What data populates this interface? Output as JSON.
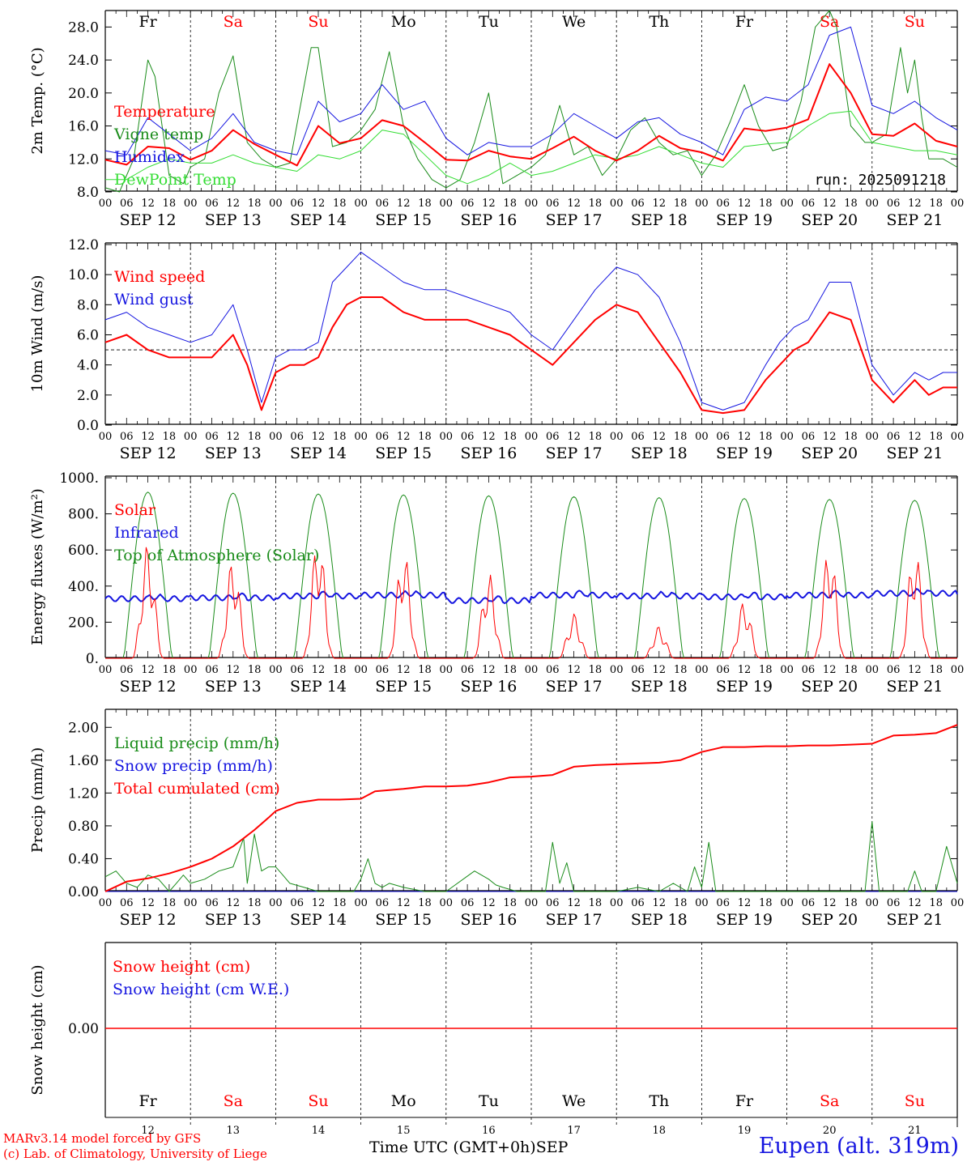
{
  "run_label": "run: 2025091218",
  "day_labels": [
    {
      "abbr": "Fr",
      "color": "#000000"
    },
    {
      "abbr": "Sa",
      "color": "#ff0000"
    },
    {
      "abbr": "Su",
      "color": "#ff0000"
    },
    {
      "abbr": "Mo",
      "color": "#000000"
    },
    {
      "abbr": "Tu",
      "color": "#000000"
    },
    {
      "abbr": "We",
      "color": "#000000"
    },
    {
      "abbr": "Th",
      "color": "#000000"
    },
    {
      "abbr": "Fr",
      "color": "#000000"
    },
    {
      "abbr": "Sa",
      "color": "#ff0000"
    },
    {
      "abbr": "Su",
      "color": "#ff0000"
    }
  ],
  "date_labels": [
    "SEP 12",
    "SEP 13",
    "SEP 14",
    "SEP 15",
    "SEP 16",
    "SEP 17",
    "SEP 18",
    "SEP 19",
    "SEP 20",
    "SEP 21"
  ],
  "hour_ticks": [
    "00",
    "06",
    "12",
    "18"
  ],
  "bottom_day_numbers": [
    "12",
    "13",
    "14",
    "15",
    "16",
    "17",
    "18",
    "19",
    "20",
    "21"
  ],
  "footer": {
    "model_line": "MARv3.14 model forced by GFS",
    "copyright_line": "(c) Lab. of Climatology, University of Liege",
    "axis_title": "Time UTC (GMT+0h)",
    "month": "SEP",
    "station": "Eupen (alt. 319m)"
  },
  "colors": {
    "red": "#ff0000",
    "green": "#1a8c1a",
    "blue": "#1515e0",
    "lightgreen": "#33dd33"
  },
  "chart_data": [
    {
      "type": "line",
      "ylabel": "2m Temp. (°C)",
      "ylim": [
        8,
        30
      ],
      "yticks": [
        "28.0",
        "24.0",
        "20.0",
        "16.0",
        "12.0",
        "8.0"
      ],
      "ytick_values": [
        28,
        24,
        20,
        16,
        12,
        8
      ],
      "x_unit": "hours since SEP 12 00 UTC",
      "xlim": [
        0,
        240
      ],
      "series": [
        {
          "name": "Temperature",
          "color": "#ff0000",
          "width": 2,
          "x": [
            0,
            6,
            12,
            18,
            24,
            30,
            36,
            42,
            48,
            54,
            60,
            66,
            72,
            78,
            84,
            90,
            96,
            102,
            108,
            114,
            120,
            126,
            132,
            138,
            144,
            150,
            156,
            162,
            168,
            174,
            180,
            186,
            192,
            198,
            204,
            210,
            216,
            222,
            228,
            234,
            240
          ],
          "y": [
            11.9,
            11.3,
            13.5,
            13.3,
            11.9,
            13.0,
            15.5,
            13.8,
            12.5,
            11.2,
            16.0,
            13.9,
            14.5,
            16.7,
            16.0,
            14.0,
            11.9,
            11.8,
            13.0,
            12.3,
            12.0,
            13.3,
            14.7,
            13.0,
            11.8,
            13.0,
            14.8,
            13.3,
            12.8,
            11.8,
            15.7,
            15.4,
            15.8,
            16.8,
            23.5,
            20.0,
            15.0,
            14.8,
            16.3,
            14.2,
            13.5
          ]
        },
        {
          "name": "Vigne temp",
          "color": "#1a8c1a",
          "width": 1,
          "x": [
            0,
            4,
            8,
            12,
            14,
            18,
            22,
            24,
            28,
            32,
            36,
            40,
            44,
            48,
            52,
            58,
            60,
            64,
            68,
            72,
            76,
            80,
            84,
            88,
            92,
            96,
            100,
            104,
            108,
            112,
            116,
            120,
            124,
            128,
            132,
            136,
            140,
            144,
            148,
            152,
            156,
            160,
            164,
            168,
            172,
            176,
            180,
            184,
            188,
            192,
            196,
            200,
            204,
            206,
            210,
            214,
            216,
            220,
            224,
            226,
            228,
            230,
            232,
            236,
            240
          ],
          "y": [
            8.5,
            8.0,
            12.0,
            24.0,
            22.0,
            10.0,
            9.0,
            11.0,
            12.0,
            20.0,
            24.5,
            14.0,
            12.0,
            11.0,
            11.5,
            25.5,
            25.5,
            13.5,
            14.0,
            15.5,
            18.0,
            25.0,
            16.0,
            12.0,
            9.5,
            8.5,
            9.5,
            14.0,
            20.0,
            9.0,
            10.0,
            11.0,
            12.5,
            18.5,
            12.5,
            13.5,
            10.0,
            12.0,
            15.5,
            17.0,
            14.0,
            12.5,
            13.0,
            10.0,
            12.5,
            16.5,
            21.0,
            16.0,
            13.0,
            13.5,
            19.0,
            28.0,
            30.0,
            28.0,
            16.0,
            14.0,
            14.0,
            15.0,
            25.5,
            20.0,
            24.0,
            17.0,
            12.0,
            12.0,
            11.0
          ]
        },
        {
          "name": "Humidex",
          "color": "#1515e0",
          "width": 1,
          "x": [
            0,
            6,
            12,
            18,
            24,
            30,
            36,
            42,
            48,
            54,
            60,
            66,
            72,
            78,
            84,
            90,
            96,
            102,
            108,
            114,
            120,
            126,
            132,
            138,
            144,
            150,
            156,
            162,
            168,
            174,
            180,
            186,
            192,
            198,
            204,
            210,
            216,
            222,
            228,
            234,
            240
          ],
          "y": [
            13.0,
            12.5,
            17.0,
            15.0,
            13.0,
            14.5,
            17.5,
            14.0,
            13.0,
            12.5,
            19.0,
            16.5,
            17.5,
            21.0,
            18.0,
            19.0,
            14.5,
            12.5,
            14.0,
            13.5,
            13.5,
            15.0,
            17.5,
            16.0,
            14.5,
            16.5,
            17.0,
            15.0,
            14.0,
            12.5,
            18.0,
            19.5,
            19.0,
            21.0,
            27.0,
            28.0,
            18.5,
            17.5,
            19.0,
            17.0,
            15.5
          ]
        },
        {
          "name": "DewPoint Temp",
          "color": "#33dd33",
          "width": 1,
          "x": [
            0,
            6,
            12,
            18,
            24,
            30,
            36,
            42,
            48,
            54,
            60,
            66,
            72,
            78,
            84,
            90,
            96,
            102,
            108,
            114,
            120,
            126,
            132,
            138,
            144,
            150,
            156,
            162,
            168,
            174,
            180,
            186,
            192,
            198,
            204,
            210,
            216,
            222,
            228,
            234,
            240
          ],
          "y": [
            9.5,
            9.5,
            11.0,
            12.0,
            11.5,
            11.5,
            12.5,
            11.5,
            11.0,
            10.5,
            12.5,
            12.0,
            13.0,
            15.5,
            15.0,
            12.5,
            10.0,
            9.0,
            10.0,
            11.5,
            10.0,
            10.5,
            11.5,
            12.5,
            12.0,
            12.5,
            13.5,
            12.5,
            11.5,
            11.0,
            13.5,
            13.8,
            14.0,
            16.0,
            17.5,
            17.8,
            14.0,
            13.5,
            13.0,
            13.0,
            12.5
          ]
        }
      ]
    },
    {
      "type": "line",
      "ylabel": "10m Wind (m/s)",
      "ylim": [
        0,
        12
      ],
      "yticks": [
        "12.0",
        "10.0",
        "8.0",
        "6.0",
        "4.0",
        "2.0",
        "0.0"
      ],
      "ytick_values": [
        12,
        10,
        8,
        6,
        4,
        2,
        0
      ],
      "reference_line": 5,
      "xlim": [
        0,
        240
      ],
      "series": [
        {
          "name": "Wind speed",
          "color": "#ff0000",
          "width": 2,
          "x": [
            0,
            6,
            12,
            18,
            24,
            30,
            36,
            40,
            44,
            48,
            52,
            56,
            60,
            64,
            68,
            72,
            78,
            84,
            90,
            96,
            102,
            108,
            114,
            120,
            126,
            132,
            138,
            144,
            150,
            156,
            162,
            168,
            174,
            180,
            186,
            190,
            194,
            198,
            204,
            210,
            216,
            222,
            228,
            232,
            236,
            240
          ],
          "y": [
            5.5,
            6.0,
            5.0,
            4.5,
            4.5,
            4.5,
            6.0,
            4.0,
            1.0,
            3.5,
            4.0,
            4.0,
            4.5,
            6.5,
            8.0,
            8.5,
            8.5,
            7.5,
            7.0,
            7.0,
            7.0,
            6.5,
            6.0,
            5.0,
            4.0,
            5.5,
            7.0,
            8.0,
            7.5,
            5.5,
            3.5,
            1.0,
            0.8,
            1.0,
            3.0,
            4.0,
            5.0,
            5.5,
            7.5,
            7.0,
            3.0,
            1.5,
            3.0,
            2.0,
            2.5,
            2.5
          ]
        },
        {
          "name": "Wind gust",
          "color": "#1515e0",
          "width": 1,
          "x": [
            0,
            6,
            12,
            18,
            24,
            30,
            36,
            40,
            44,
            48,
            52,
            56,
            60,
            64,
            68,
            72,
            78,
            84,
            90,
            96,
            102,
            108,
            114,
            120,
            126,
            132,
            138,
            144,
            150,
            156,
            162,
            168,
            174,
            180,
            186,
            190,
            194,
            198,
            204,
            210,
            216,
            222,
            228,
            232,
            236,
            240
          ],
          "y": [
            7.0,
            7.5,
            6.5,
            6.0,
            5.5,
            6.0,
            8.0,
            5.0,
            1.5,
            4.5,
            5.0,
            5.0,
            5.5,
            9.5,
            10.5,
            11.5,
            10.5,
            9.5,
            9.0,
            9.0,
            8.5,
            8.0,
            7.5,
            6.0,
            5.0,
            7.0,
            9.0,
            10.5,
            10.0,
            8.5,
            5.5,
            1.5,
            1.0,
            1.5,
            4.0,
            5.5,
            6.5,
            7.0,
            9.5,
            9.5,
            4.0,
            2.0,
            3.5,
            3.0,
            3.5,
            3.5
          ]
        }
      ]
    },
    {
      "type": "line",
      "ylabel": "Energy fluxes (W/m²)",
      "ylim": [
        0,
        1000
      ],
      "yticks": [
        "1000.",
        "800.",
        "600.",
        "400.",
        "200.",
        "0."
      ],
      "ytick_values": [
        1000,
        800,
        600,
        400,
        200,
        0
      ],
      "xlim": [
        0,
        240
      ],
      "solar_peaks": [
        640,
        560,
        680,
        610,
        480,
        250,
        180,
        320,
        630,
        620
      ],
      "toa_peaks": [
        920,
        915,
        910,
        905,
        900,
        895,
        890,
        885,
        880,
        875
      ],
      "infrared_level": [
        330,
        335,
        345,
        350,
        320,
        350,
        345,
        340,
        350,
        360
      ],
      "series": [
        {
          "name": "Solar",
          "color": "#ff0000",
          "width": 1
        },
        {
          "name": "Infrared",
          "color": "#1515e0",
          "width": 2
        },
        {
          "name": "Top of Atmosphere (Solar)",
          "color": "#1a8c1a",
          "width": 1
        }
      ]
    },
    {
      "type": "line",
      "ylabel": "Precip (mm/h)",
      "ylim": [
        0,
        2.2
      ],
      "yticks": [
        "2.00",
        "1.60",
        "1.20",
        "0.80",
        "0.40",
        "0.00"
      ],
      "ytick_values": [
        2.0,
        1.6,
        1.2,
        0.8,
        0.4,
        0.0
      ],
      "xlim": [
        0,
        240
      ],
      "series": [
        {
          "name": "Liquid precip (mm/h)",
          "color": "#1a8c1a",
          "width": 1,
          "x": [
            0,
            3,
            6,
            9,
            12,
            15,
            18,
            20,
            22,
            24,
            28,
            32,
            36,
            39,
            40,
            42,
            44,
            46,
            48,
            50,
            52,
            56,
            60,
            64,
            70,
            72,
            74,
            76,
            78,
            80,
            84,
            90,
            96,
            104,
            108,
            110,
            112,
            116,
            120,
            124,
            126,
            128,
            130,
            132,
            136,
            144,
            150,
            156,
            160,
            164,
            166,
            168,
            170,
            172,
            174,
            180,
            186,
            192,
            200,
            210,
            212,
            214,
            216,
            218,
            222,
            226,
            228,
            230,
            234,
            237,
            240
          ],
          "y": [
            0.18,
            0.25,
            0.1,
            0.05,
            0.2,
            0.15,
            0.0,
            0.1,
            0.2,
            0.1,
            0.15,
            0.25,
            0.3,
            0.65,
            0.1,
            0.7,
            0.25,
            0.3,
            0.3,
            0.2,
            0.1,
            0.05,
            0.0,
            0.0,
            0.0,
            0.15,
            0.4,
            0.1,
            0.05,
            0.1,
            0.05,
            0.0,
            0.0,
            0.25,
            0.15,
            0.08,
            0.05,
            0.0,
            0.0,
            0.0,
            0.6,
            0.1,
            0.35,
            0.0,
            0.0,
            0.0,
            0.05,
            0.0,
            0.1,
            0.0,
            0.3,
            0.05,
            0.6,
            0.0,
            0.0,
            0.0,
            0.0,
            0.0,
            0.0,
            0.0,
            0.0,
            0.0,
            0.85,
            0.0,
            0.0,
            0.0,
            0.25,
            0.0,
            0.0,
            0.55,
            0.1
          ]
        },
        {
          "name": "Snow precip (mm/h)",
          "color": "#1515e0",
          "width": 1,
          "x": [
            0,
            240
          ],
          "y": [
            0,
            0
          ]
        },
        {
          "name": "Total cumulated (cm)",
          "color": "#ff0000",
          "width": 2,
          "x": [
            0,
            6,
            12,
            18,
            24,
            30,
            36,
            42,
            46,
            48,
            54,
            60,
            66,
            72,
            76,
            84,
            90,
            96,
            102,
            108,
            114,
            120,
            126,
            132,
            138,
            144,
            150,
            156,
            162,
            168,
            174,
            180,
            186,
            192,
            198,
            204,
            210,
            216,
            222,
            228,
            234,
            240
          ],
          "y": [
            0.0,
            0.12,
            0.16,
            0.22,
            0.3,
            0.4,
            0.55,
            0.75,
            0.9,
            0.98,
            1.08,
            1.12,
            1.12,
            1.13,
            1.22,
            1.25,
            1.28,
            1.28,
            1.29,
            1.33,
            1.39,
            1.4,
            1.42,
            1.52,
            1.54,
            1.55,
            1.56,
            1.57,
            1.6,
            1.7,
            1.76,
            1.76,
            1.77,
            1.77,
            1.78,
            1.78,
            1.79,
            1.8,
            1.9,
            1.91,
            1.93,
            2.03
          ]
        }
      ]
    },
    {
      "type": "line",
      "ylabel": "Snow height (cm)",
      "yticks": [
        "0.00"
      ],
      "ytick_values": [
        0
      ],
      "xlim": [
        0,
        240
      ],
      "series": [
        {
          "name": "Snow height (cm)",
          "color": "#ff0000",
          "width": 1,
          "x": [
            0,
            240
          ],
          "y": [
            0,
            0
          ]
        },
        {
          "name": "Snow height (cm W.E.)",
          "color": "#1515e0",
          "width": 1,
          "x": [
            0,
            240
          ],
          "y": [
            0,
            0
          ]
        }
      ]
    }
  ]
}
